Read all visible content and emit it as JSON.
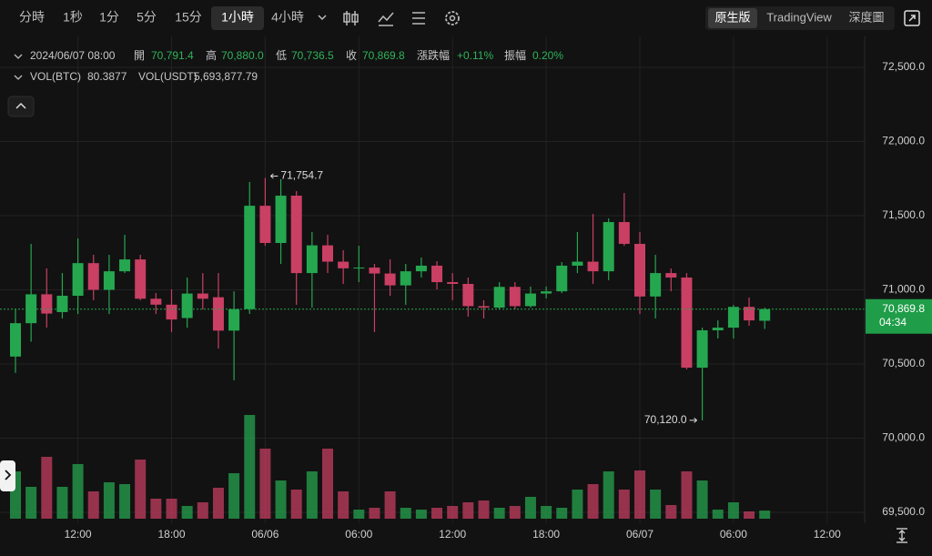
{
  "toolbar": {
    "intervals": [
      "分時",
      "1秒",
      "1分",
      "5分",
      "15分",
      "1小時",
      "4小時"
    ],
    "views": [
      "原生版",
      "TradingView",
      "深度圖"
    ]
  },
  "header": {
    "time": "2024/06/07 08:00",
    "fields": [
      {
        "label": "開",
        "value": "70,791.4"
      },
      {
        "label": "高",
        "value": "70,880.0"
      },
      {
        "label": "低",
        "value": "70,736.5"
      },
      {
        "label": "收",
        "value": "70,869.8"
      },
      {
        "label": "漲跌幅",
        "value": "+0.11%"
      },
      {
        "label": "振幅",
        "value": "0.20%"
      }
    ],
    "volume": [
      {
        "label": "VOL(BTC)",
        "value": "80.3877"
      },
      {
        "label": "VOL(USDT)",
        "value": "5,693,877.79"
      }
    ]
  },
  "chart_data": {
    "type": "candlestick",
    "open": [
      70550,
      70775,
      70970,
      70850,
      70960,
      71180,
      71000,
      71125,
      71205,
      70940,
      70900,
      70810,
      70975,
      70950,
      70725,
      70870,
      71567,
      71316,
      71635,
      71113,
      71300,
      71190,
      71145,
      71150,
      71110,
      71030,
      71125,
      71163,
      71052,
      71040,
      70890,
      70880,
      71020,
      70890,
      70975,
      70990,
      71163,
      71190,
      71125,
      71457,
      71310,
      70955,
      71113,
      71083,
      70475,
      70727,
      70745,
      70885,
      70791.4
    ],
    "high": [
      70870,
      71310,
      71144,
      71113,
      71347,
      71236,
      71236,
      71371,
      71236,
      70978,
      71003,
      71083,
      71113,
      71113,
      70990,
      71727,
      71754.7,
      71746,
      71666,
      71390,
      71371,
      71267,
      71297,
      71175,
      71206,
      71175,
      71218,
      71193,
      71113,
      71083,
      70930,
      71052,
      71052,
      71022,
      71022,
      71187,
      71390,
      71512,
      71482,
      71653,
      71390,
      71236,
      71144,
      71113,
      70745,
      70794,
      70899,
      70948,
      70880.0
    ],
    "low": [
      70440,
      70650,
      70745,
      70807,
      70837,
      70930,
      70837,
      71113,
      70930,
      70837,
      70715,
      70745,
      70868,
      70604,
      70390,
      70837,
      71297,
      71175,
      70899,
      70880,
      71113,
      71040,
      71052,
      70715,
      70960,
      70899,
      71083,
      71003,
      70930,
      70819,
      70807,
      70868,
      70868,
      70880,
      70942,
      70978,
      71113,
      71040,
      71065,
      71297,
      70837,
      70807,
      70990,
      70463,
      70120.0,
      70672,
      70672,
      70758,
      70736.5
    ],
    "close": [
      70775,
      70970,
      70840,
      70960,
      71180,
      71000,
      71125,
      71205,
      70940,
      70900,
      70800,
      70975,
      70940,
      70725,
      70870,
      71567,
      71316,
      71635,
      71113,
      71300,
      71190,
      71145,
      71150,
      71110,
      71030,
      71125,
      71163,
      71052,
      71040,
      70890,
      70880,
      71020,
      70890,
      70975,
      70990,
      71163,
      71190,
      71125,
      71457,
      71310,
      70955,
      71113,
      71083,
      70475,
      70727,
      70745,
      70885,
      70794,
      70869.8
    ],
    "volume": [
      468,
      315,
      612,
      315,
      540,
      270,
      360,
      342,
      585,
      198,
      198,
      126,
      162,
      306,
      450,
      1026,
      693,
      378,
      288,
      468,
      693,
      270,
      90,
      108,
      270,
      108,
      90,
      108,
      126,
      162,
      180,
      108,
      126,
      216,
      126,
      108,
      288,
      342,
      468,
      288,
      477,
      288,
      135,
      468,
      378,
      90,
      162,
      72,
      80.3877
    ],
    "up_color": "#25a750",
    "down_color": "#ca3f64",
    "ylim": [
      69426,
      72709
    ],
    "yticks": [
      {
        "value": 69500,
        "label": "69,500.0"
      },
      {
        "value": 70000,
        "label": "70,000.0"
      },
      {
        "value": 70500,
        "label": "70,500.0"
      },
      {
        "value": 71000,
        "label": "71,000.0"
      },
      {
        "value": 71500,
        "label": "71,500.0"
      },
      {
        "value": 72000,
        "label": "72,000.0"
      },
      {
        "value": 72500,
        "label": "72,500.0"
      }
    ],
    "volume_ylim": [
      0,
      1350
    ],
    "xticks": [
      "12:00",
      "18:00",
      "06/06",
      "06:00",
      "12:00",
      "18:00",
      "06/07",
      "06:00",
      "12:00"
    ],
    "annotations": [
      {
        "value": 71754.7,
        "label": "71,754.7"
      },
      {
        "value": 70120.0,
        "label": "70,120.0"
      }
    ],
    "last_price": {
      "value": 70869.8,
      "label": "70,869.8"
    },
    "countdown": "04:34",
    "grid": true
  }
}
